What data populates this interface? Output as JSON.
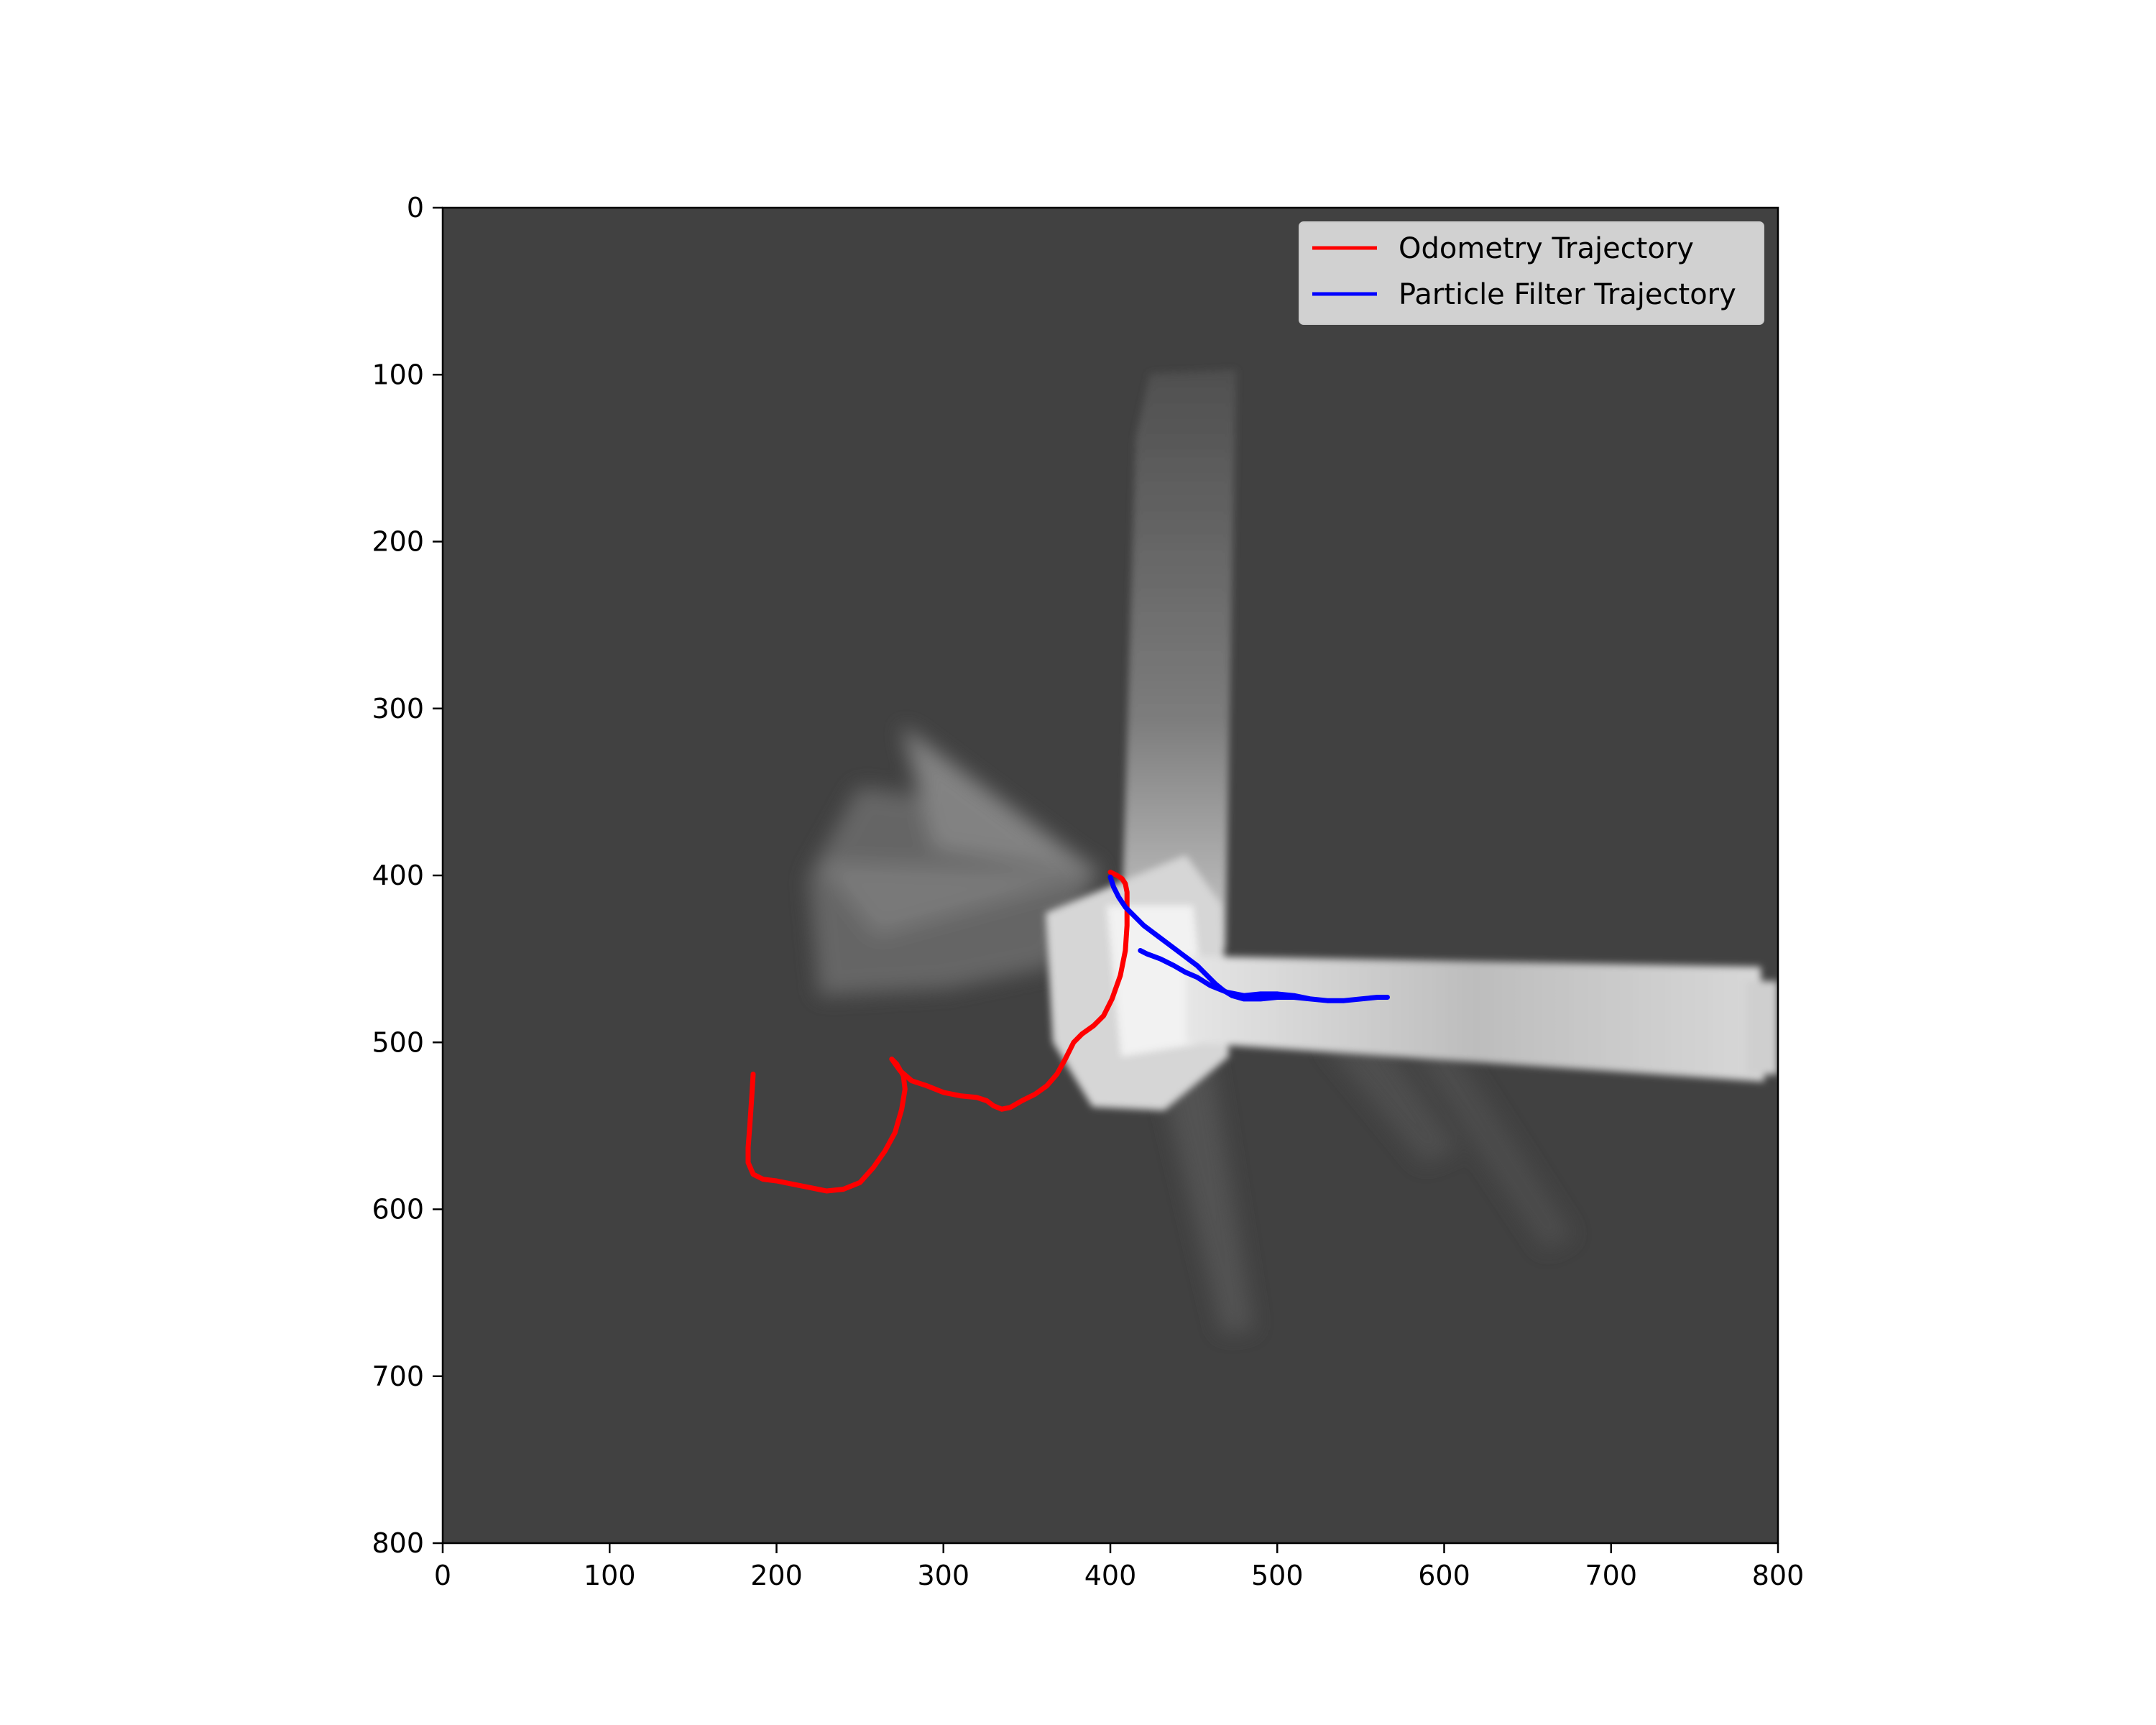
{
  "chart_data": {
    "type": "line",
    "title": "",
    "xlabel": "",
    "ylabel": "",
    "xlim": [
      0,
      800
    ],
    "ylim": [
      800,
      0
    ],
    "y_inverted": true,
    "grid": false,
    "background": "occupancy-map",
    "x_ticks": [
      "0",
      "100",
      "200",
      "300",
      "400",
      "500",
      "600",
      "700",
      "800"
    ],
    "y_ticks": [
      "0",
      "100",
      "200",
      "300",
      "400",
      "500",
      "600",
      "700",
      "800"
    ],
    "legend": {
      "placement": "top-right"
    },
    "series": [
      {
        "name": "Odometry Trajectory",
        "color": "#ff0000",
        "x": [
          186,
          185,
          184,
          183,
          183,
          186,
          192,
          200,
          210,
          220,
          230,
          240,
          250,
          258,
          265,
          271,
          275,
          277,
          276,
          272,
          269,
          274,
          281,
          290,
          300,
          310,
          320,
          326,
          330,
          335,
          340,
          347,
          355,
          362,
          368,
          373,
          378,
          383,
          390,
          396,
          401,
          406,
          409,
          410,
          410,
          410,
          409,
          407,
          404,
          400
        ],
        "y": [
          519,
          535,
          550,
          563,
          572,
          579,
          582,
          583,
          585,
          587,
          589,
          588,
          584,
          575,
          565,
          554,
          540,
          528,
          520,
          513,
          510,
          517,
          523,
          526,
          530,
          532,
          533,
          535,
          538,
          540,
          539,
          535,
          531,
          526,
          519,
          510,
          500,
          495,
          490,
          484,
          474,
          460,
          445,
          430,
          418,
          410,
          405,
          402,
          400,
          398
        ]
      },
      {
        "name": "Particle Filter Trajectory",
        "color": "#0000ff",
        "x": [
          400,
          402,
          405,
          409,
          414,
          420,
          428,
          436,
          444,
          452,
          458,
          463,
          468,
          473,
          480,
          490,
          500,
          510,
          520,
          530,
          540,
          550,
          560,
          566,
          560,
          550,
          540,
          530,
          520,
          510,
          500,
          490,
          480,
          470,
          460,
          452,
          445,
          438,
          430,
          422,
          418
        ],
        "y": [
          401,
          407,
          413,
          419,
          424,
          430,
          436,
          442,
          448,
          454,
          460,
          465,
          469,
          472,
          474,
          474,
          473,
          473,
          474,
          475,
          475,
          474,
          473,
          473,
          473,
          474,
          475,
          475,
          474,
          472,
          471,
          471,
          472,
          470,
          466,
          461,
          458,
          454,
          450,
          447,
          445
        ]
      }
    ]
  }
}
